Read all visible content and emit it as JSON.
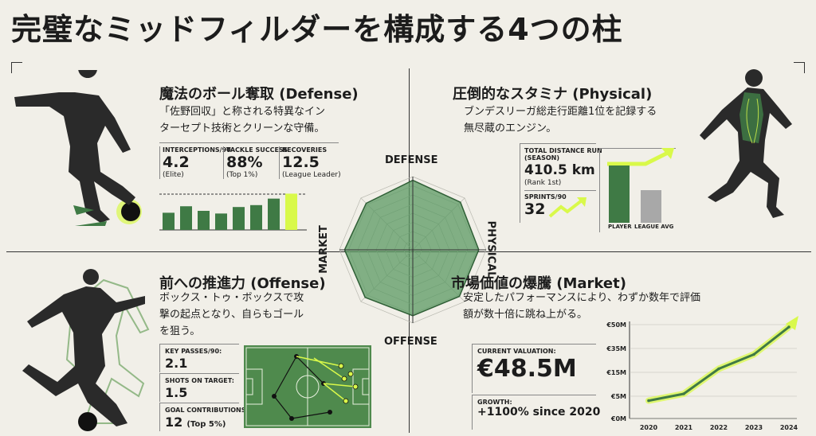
{
  "title": "完璧なミッドフィルダーを構成する4つの柱",
  "defense": {
    "title": "魔法のボール奪取 (Defense)",
    "desc_line1": "「佐野回収」と称される特異なイン",
    "desc_line2": "ターセプト技術とクリーンな守備。",
    "stats": [
      {
        "label": "INTERCEPTIONS/90",
        "value": "4.2",
        "sub": "(Elite)"
      },
      {
        "label": "TACKLE SUCCESS",
        "value": "88%",
        "sub": "(Top 1%)"
      },
      {
        "label": "RECOVERIES",
        "value": "12.5",
        "sub": "(League Leader)"
      }
    ],
    "bars": [
      0.45,
      0.62,
      0.5,
      0.43,
      0.6,
      0.65,
      0.82,
      0.95
    ],
    "highlight_color": "#d9f94a",
    "bar_color": "#3f7a45"
  },
  "physical": {
    "title": "圧倒的なスタミナ (Physical)",
    "desc_line1": "ブンデスリーガ総走行距離1位を記録する",
    "desc_line2": "無尽蔵のエンジン。",
    "distance_label1": "TOTAL DISTANCE RUN",
    "distance_label2": "(SEASON)",
    "distance_value": "410.5 km",
    "distance_sub": "(Rank 1st)",
    "sprints_label": "SPRINTS/90",
    "sprints_value": "32",
    "bar_labels": [
      "PLAYER",
      "LEAGUE AVG"
    ],
    "bar_values": [
      1.0,
      0.57
    ],
    "player_color": "#3f7a45",
    "league_color": "#a8a8a8"
  },
  "offense": {
    "title": "前への推進力 (Offense)",
    "desc_line1": "ボックス・トゥ・ボックスで攻",
    "desc_line2": "撃の起点となり、自らもゴール",
    "desc_line3": "を狙う。",
    "stats": [
      {
        "label": "KEY PASSES/90:",
        "value": "2.1"
      },
      {
        "label": "SHOTS ON TARGET:",
        "value": "1.5"
      },
      {
        "label": "GOAL CONTRIBUTIONS:",
        "value": "12",
        "sub": "(Top 5%)"
      }
    ],
    "pitch_color": "#4f8a4d"
  },
  "market": {
    "title": "市場価値の爆騰 (Market)",
    "desc_line1": "安定したパフォーマンスにより、わずか数年で評価",
    "desc_line2": "額が数十倍に跳ね上がる。",
    "valuation_label": "CURRENT VALUATION:",
    "valuation_value": "€48.5M",
    "growth_label": "GROWTH:",
    "growth_value": "+1100% since 2020",
    "y_ticks": [
      "€50M",
      "€35M",
      "€15M",
      "€5M",
      "€0M"
    ],
    "x_ticks": [
      "2020",
      "2021",
      "2022",
      "2023",
      "2024"
    ]
  },
  "radar": {
    "labels": {
      "top": "DEFENSE",
      "right": "PHYSICAL",
      "bottom": "OFFENSE",
      "left": "MARKET"
    },
    "values": [
      0.95,
      0.92,
      0.9,
      0.9,
      0.9,
      0.92,
      0.93,
      0.9
    ],
    "fill_color": "#5b9a63"
  },
  "chart_data": {
    "type": "line",
    "title": "",
    "x": [
      2020,
      2021,
      2022,
      2023,
      2024
    ],
    "series": [
      {
        "values": [
          4,
          6,
          18,
          30,
          48.5
        ]
      }
    ],
    "y_tick_labels": [
      "€0M",
      "€5M",
      "€15M",
      "€35M",
      "€50M"
    ],
    "xlabel": "",
    "ylabel": "",
    "line_color": "#3f7a45",
    "glow_color": "#d9f94a"
  }
}
